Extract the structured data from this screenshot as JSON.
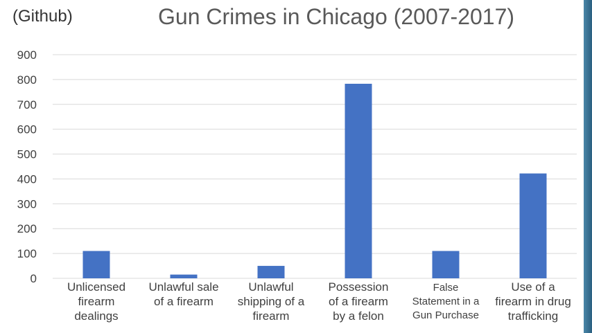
{
  "page": {
    "source_note": "(Github)"
  },
  "chart_data": {
    "type": "bar",
    "title": "Gun Crimes in Chicago (2007-2017)",
    "categories": [
      "Unlicensed firearm dealings",
      "Unlawful sale of a firearm",
      "Unlawful shipping of a firearm",
      "Possession of a firearm by a felon",
      "False Statement in a Gun Purchase",
      "Use of a firearm in drug trafficking"
    ],
    "category_lines": [
      [
        "Unlicensed",
        "firearm",
        "dealings"
      ],
      [
        "Unlawful sale",
        "of a firearm"
      ],
      [
        "Unlawful",
        "shipping of a",
        "firearm"
      ],
      [
        "Possession",
        "of a firearm",
        "by a felon"
      ],
      [
        "False",
        "Statement in a",
        "Gun Purchase"
      ],
      [
        "Use of a",
        "firearm in drug",
        "trafficking"
      ]
    ],
    "values": [
      110,
      15,
      50,
      783,
      110,
      422
    ],
    "ylim": [
      0,
      900
    ],
    "yticks": [
      0,
      100,
      200,
      300,
      400,
      500,
      600,
      700,
      800,
      900
    ],
    "grid": true,
    "bar_color": "#4472c4",
    "grid_color": "#d9d9d9",
    "xlabel": "",
    "ylabel": ""
  }
}
